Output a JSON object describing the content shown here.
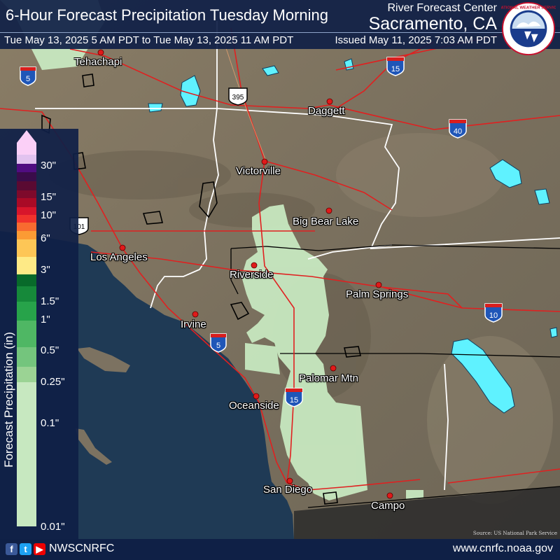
{
  "header": {
    "title": "6-Hour Forecast Precipitation Tuesday Morning",
    "rfc_line": "River Forecast Center",
    "office": "Sacramento, CA",
    "valid_period": "Tue May 13, 2025 5 AM PDT to Tue May 13, 2025 11 AM PDT",
    "issued": "Issued May 11, 2025 7:03 AM PDT",
    "logo_text": "NATIONAL WEATHER SERVICE"
  },
  "legend": {
    "title": "Forecast Precipitation (in)",
    "labels": [
      "30\"",
      "15\"",
      "10\"",
      "6\"",
      "3\"",
      "1.5\"",
      "1\"",
      "0.5\"",
      "0.25\"",
      "0.1\"",
      "0.01\""
    ],
    "colors": [
      "#fbd0f7",
      "#e2c3ef",
      "#500d81",
      "#3a0c4a",
      "#5a0a32",
      "#7e0a2b",
      "#a90a26",
      "#d7152b",
      "#f0322c",
      "#f86b30",
      "#fb9b34",
      "#fdc656",
      "#feea86",
      "#086a2a",
      "#16893a",
      "#27a34a",
      "#4fb764",
      "#74c57d",
      "#9bd394",
      "#c7e8c0"
    ]
  },
  "cities": [
    "Tehachapi",
    "Daggett",
    "Victorville",
    "Big Bear Lake",
    "Los Angeles",
    "Riverside",
    "Palm Springs",
    "Irvine",
    "Palomar Mtn",
    "Oceanside",
    "San Diego",
    "Campo"
  ],
  "route_shields": [
    "5",
    "15",
    "395",
    "40",
    "101",
    "10",
    "5",
    "15"
  ],
  "footer": {
    "handle": "NWSCNRFC",
    "url": "www.cnrfc.noaa.gov",
    "source": "Source: US National Park Service"
  },
  "colors": {
    "banner": "#0f2046",
    "ocean": "#1f3a55",
    "land": "#7c7261",
    "road": "#e02020",
    "water": "#5ff2ff",
    "qpf_light": "#c7e8c0"
  }
}
